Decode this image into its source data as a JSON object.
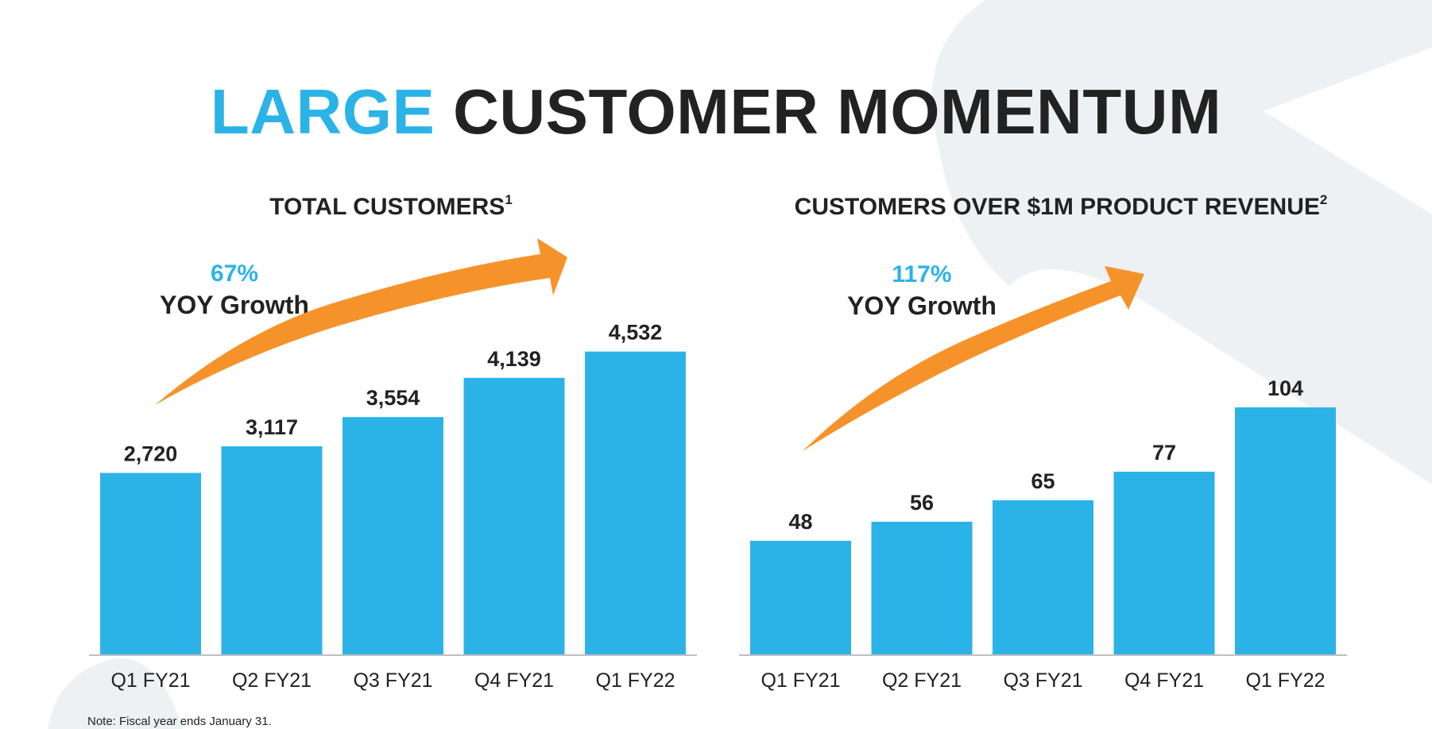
{
  "title": {
    "accent": "LARGE",
    "rest": "CUSTOMER MOMENTUM"
  },
  "colors": {
    "bar": "#2BB3E8",
    "accent": "#2BB3E8",
    "arrow": "#F5932A",
    "axis": "#BFBFBF",
    "bg_shape": "#EEF1F3"
  },
  "charts": [
    {
      "title": "TOTAL CUSTOMERS",
      "footnote_mark": "1",
      "growth": {
        "pct": "67%",
        "label": "YOY Growth"
      }
    },
    {
      "title": "CUSTOMERS OVER $1M PRODUCT REVENUE",
      "footnote_mark": "2",
      "growth": {
        "pct": "117%",
        "label": "YOY Growth"
      }
    }
  ],
  "chart_data": [
    {
      "type": "bar",
      "title": "TOTAL CUSTOMERS",
      "categories": [
        "Q1 FY21",
        "Q2 FY21",
        "Q3 FY21",
        "Q4 FY21",
        "Q1 FY22"
      ],
      "values": [
        2720,
        3117,
        3554,
        4139,
        4532
      ],
      "value_labels": [
        "2,720",
        "3,117",
        "3,554",
        "4,139",
        "4,532"
      ],
      "xlabel": "",
      "ylabel": "",
      "grid": false
    },
    {
      "type": "bar",
      "title": "CUSTOMERS OVER $1M PRODUCT REVENUE",
      "categories": [
        "Q1 FY21",
        "Q2 FY21",
        "Q3 FY21",
        "Q4 FY21",
        "Q1 FY22"
      ],
      "values": [
        48,
        56,
        65,
        77,
        104
      ],
      "value_labels": [
        "48",
        "56",
        "65",
        "77",
        "104"
      ],
      "xlabel": "",
      "ylabel": "",
      "grid": false
    }
  ],
  "note": "Note: Fiscal year ends January 31."
}
